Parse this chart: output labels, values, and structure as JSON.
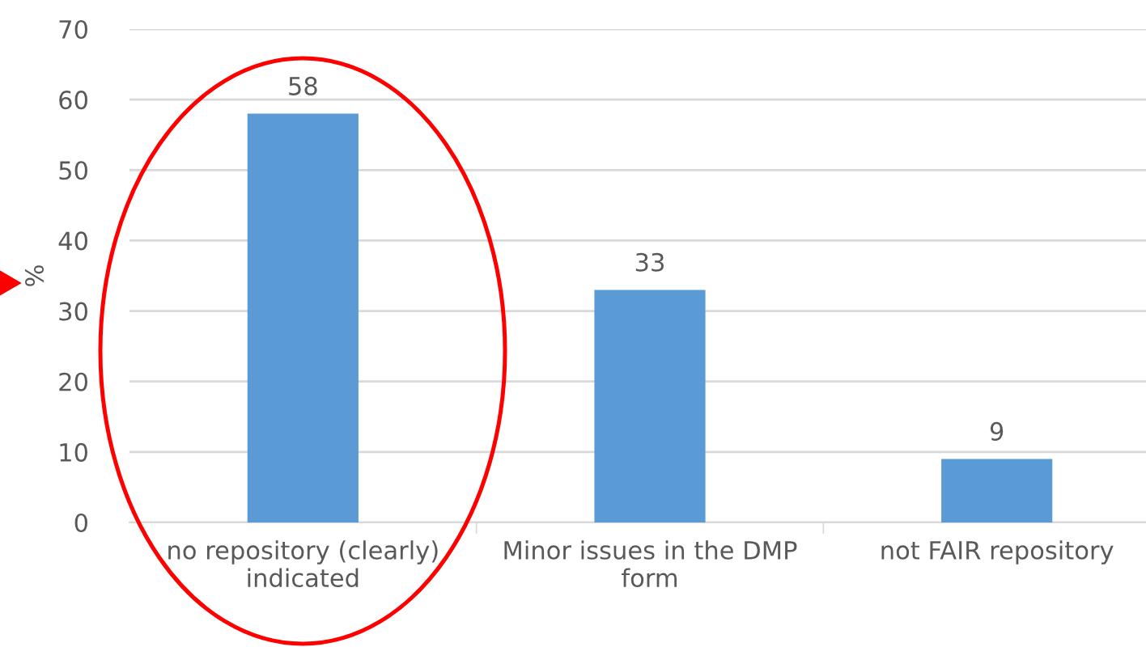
{
  "chart_data": {
    "type": "bar",
    "ylabel": "%",
    "categories": [
      "no repository (clearly)\nindicated",
      "Minor issues in the DMP\nform",
      "not FAIR repository"
    ],
    "values": [
      58,
      33,
      9
    ],
    "color": "#5b9bd5",
    "ylim": [
      0,
      70
    ],
    "yticks": [
      0,
      10,
      20,
      30,
      40,
      50,
      60,
      70
    ],
    "grid": "y",
    "data_labels": true
  }
}
